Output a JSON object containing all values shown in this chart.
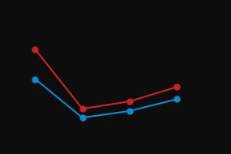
{
  "red_x": [
    1,
    2,
    3,
    4
  ],
  "red_y": [
    100,
    -61,
    -41,
    -2
  ],
  "blue_x": [
    1,
    2,
    3,
    4
  ],
  "blue_y": [
    19.5,
    -85,
    -67,
    -35
  ],
  "red_color": "#cc2222",
  "blue_color": "#1188cc",
  "bg_color": "#0d0d0d",
  "marker_size": 5,
  "line_width": 1.5,
  "ylim": [
    -150,
    200
  ],
  "xlim": [
    0.5,
    5.0
  ]
}
